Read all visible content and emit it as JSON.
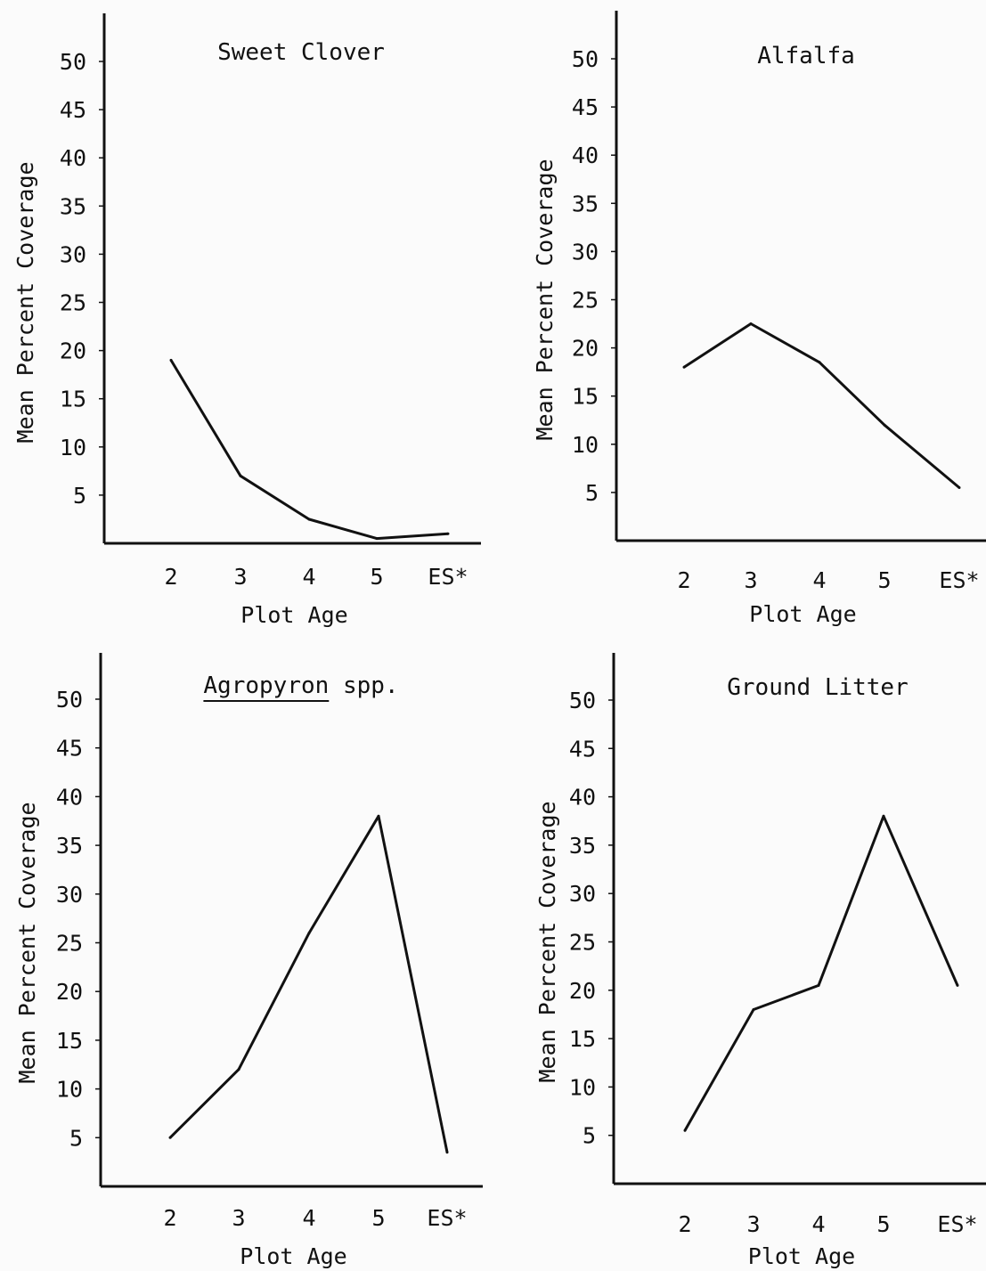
{
  "chart_data": [
    {
      "type": "line",
      "title": "Sweet Clover",
      "title_italic": false,
      "xlabel": "Plot Age",
      "ylabel": "Mean Percent Coverage",
      "categories": [
        "2",
        "3",
        "4",
        "5",
        "ES*"
      ],
      "yticks": [
        5,
        10,
        15,
        20,
        25,
        30,
        35,
        40,
        45,
        50
      ],
      "ylim": [
        0,
        50
      ],
      "series": [
        {
          "values": [
            19,
            7,
            2.5,
            0.5,
            1
          ]
        }
      ],
      "grid": false
    },
    {
      "type": "line",
      "title": "Alfalfa",
      "title_italic": false,
      "xlabel": "Plot Age",
      "ylabel": "Mean Percent Coverage",
      "categories": [
        "2",
        "3",
        "4",
        "5",
        "ES*"
      ],
      "yticks": [
        5,
        10,
        15,
        20,
        25,
        30,
        35,
        40,
        45,
        50
      ],
      "ylim": [
        0,
        50
      ],
      "series": [
        {
          "values": [
            18,
            22.5,
            18.5,
            12,
            5.5
          ]
        }
      ],
      "grid": false
    },
    {
      "type": "line",
      "title": "Agropyron",
      "title_suffix": " spp.",
      "title_italic": true,
      "xlabel": "Plot Age",
      "ylabel": "Mean Percent Coverage",
      "categories": [
        "2",
        "3",
        "4",
        "5",
        "ES*"
      ],
      "yticks": [
        5,
        10,
        15,
        20,
        25,
        30,
        35,
        40,
        45,
        50
      ],
      "ylim": [
        0,
        50
      ],
      "series": [
        {
          "values": [
            5,
            12,
            26,
            38,
            3.5
          ]
        }
      ],
      "grid": false
    },
    {
      "type": "line",
      "title": "Ground Litter",
      "title_italic": false,
      "xlabel": "Plot Age",
      "ylabel": "Mean Percent Coverage",
      "categories": [
        "2",
        "3",
        "4",
        "5",
        "ES*"
      ],
      "yticks": [
        5,
        10,
        15,
        20,
        25,
        30,
        35,
        40,
        45,
        50
      ],
      "ylim": [
        0,
        50
      ],
      "series": [
        {
          "values": [
            5.5,
            18,
            20.5,
            38,
            20.5
          ]
        }
      ],
      "grid": false
    }
  ]
}
